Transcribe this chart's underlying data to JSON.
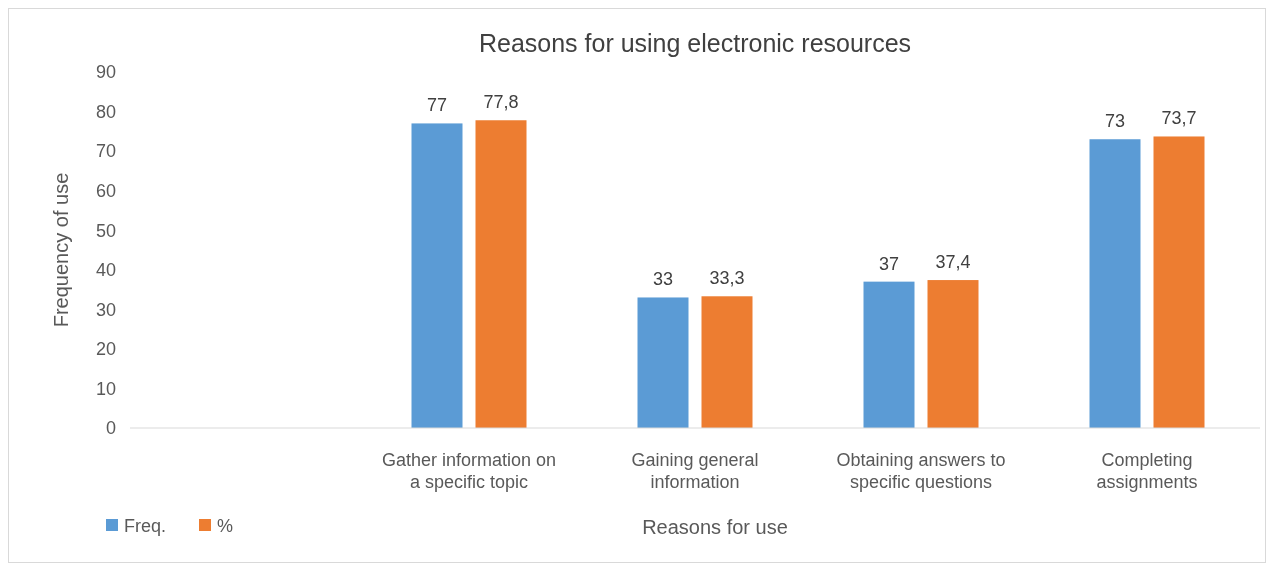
{
  "chart_data": {
    "type": "bar",
    "title": "Reasons for using electronic resources",
    "xlabel": "Reasons for use",
    "ylabel": "Frequency of use",
    "categories": [
      null,
      "Gather information on a specific topic",
      "Gaining general information",
      "Obtaining answers to specific questions",
      "Completing assignments"
    ],
    "series": [
      {
        "name": "Freq.",
        "color": "#5b9bd5",
        "values": [
          null,
          77,
          33,
          37,
          73
        ],
        "value_labels": [
          null,
          "77",
          "33",
          "37",
          "73"
        ]
      },
      {
        "name": "%",
        "color": "#ed7d31",
        "values": [
          null,
          77.8,
          33.3,
          37.4,
          73.7
        ],
        "value_labels": [
          null,
          "77,8",
          "33,3",
          "37,4",
          "73,7"
        ]
      }
    ],
    "ylim": [
      0,
      90
    ],
    "yticks": [
      0,
      10,
      20,
      30,
      40,
      50,
      60,
      70,
      80,
      90
    ],
    "legend": "bottom left"
  }
}
